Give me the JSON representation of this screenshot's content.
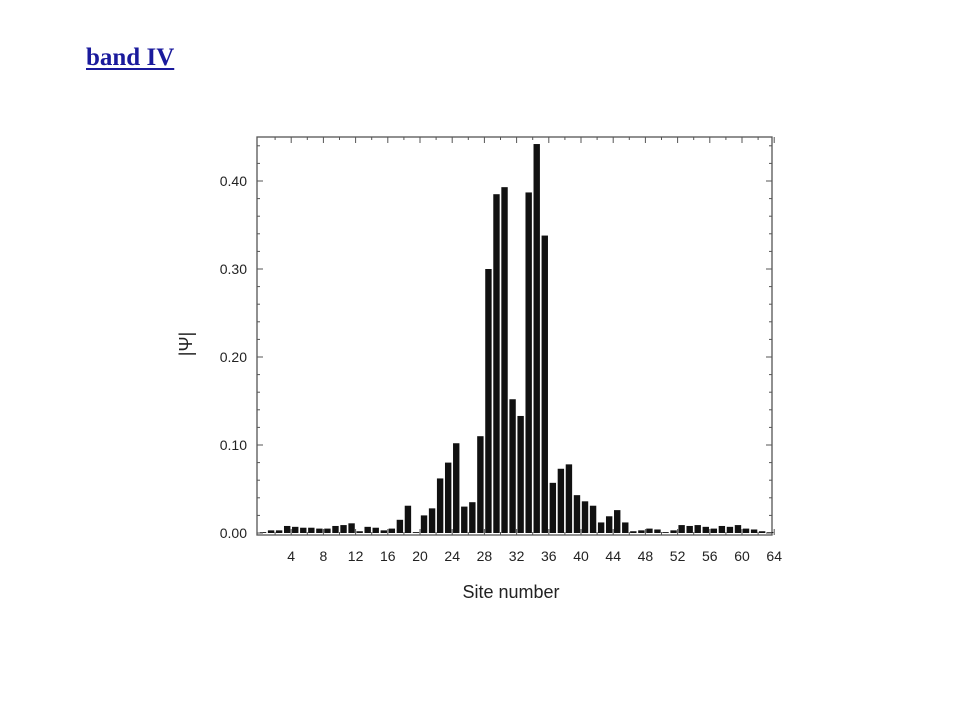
{
  "link": {
    "label": "band IV"
  },
  "chart_data": {
    "type": "bar",
    "title": "",
    "xlabel": "Site number",
    "ylabel": "|Ψ|",
    "xlim": [
      0,
      64
    ],
    "ylim": [
      0,
      0.45
    ],
    "xticks": [
      4,
      8,
      12,
      16,
      20,
      24,
      28,
      32,
      36,
      40,
      44,
      48,
      52,
      56,
      60,
      64
    ],
    "yticks": [
      0.0,
      0.1,
      0.2,
      0.3,
      0.4
    ],
    "ytick_labels": [
      "0.00",
      "0.10",
      "0.20",
      "0.30",
      "0.40"
    ],
    "grid": false,
    "bar_color": "#111111",
    "x": [
      1,
      2,
      3,
      4,
      5,
      6,
      7,
      8,
      9,
      10,
      11,
      12,
      13,
      14,
      15,
      16,
      17,
      18,
      19,
      20,
      21,
      22,
      23,
      24,
      25,
      26,
      27,
      28,
      29,
      30,
      31,
      32,
      33,
      34,
      35,
      36,
      37,
      38,
      39,
      40,
      41,
      42,
      43,
      44,
      45,
      46,
      47,
      48,
      49,
      50,
      51,
      52,
      53,
      54,
      55,
      56,
      57,
      58,
      59,
      60,
      61,
      62,
      63,
      64
    ],
    "values": [
      0.001,
      0.003,
      0.003,
      0.008,
      0.007,
      0.006,
      0.006,
      0.005,
      0.005,
      0.008,
      0.009,
      0.011,
      0.002,
      0.007,
      0.006,
      0.003,
      0.005,
      0.015,
      0.031,
      0.001,
      0.02,
      0.028,
      0.062,
      0.08,
      0.102,
      0.03,
      0.035,
      0.11,
      0.3,
      0.385,
      0.393,
      0.152,
      0.133,
      0.387,
      0.442,
      0.338,
      0.057,
      0.073,
      0.078,
      0.043,
      0.036,
      0.031,
      0.012,
      0.019,
      0.026,
      0.012,
      0.002,
      0.003,
      0.005,
      0.004,
      0.001,
      0.003,
      0.009,
      0.008,
      0.009,
      0.007,
      0.005,
      0.008,
      0.007,
      0.009,
      0.005,
      0.004,
      0.002,
      0.001
    ]
  }
}
